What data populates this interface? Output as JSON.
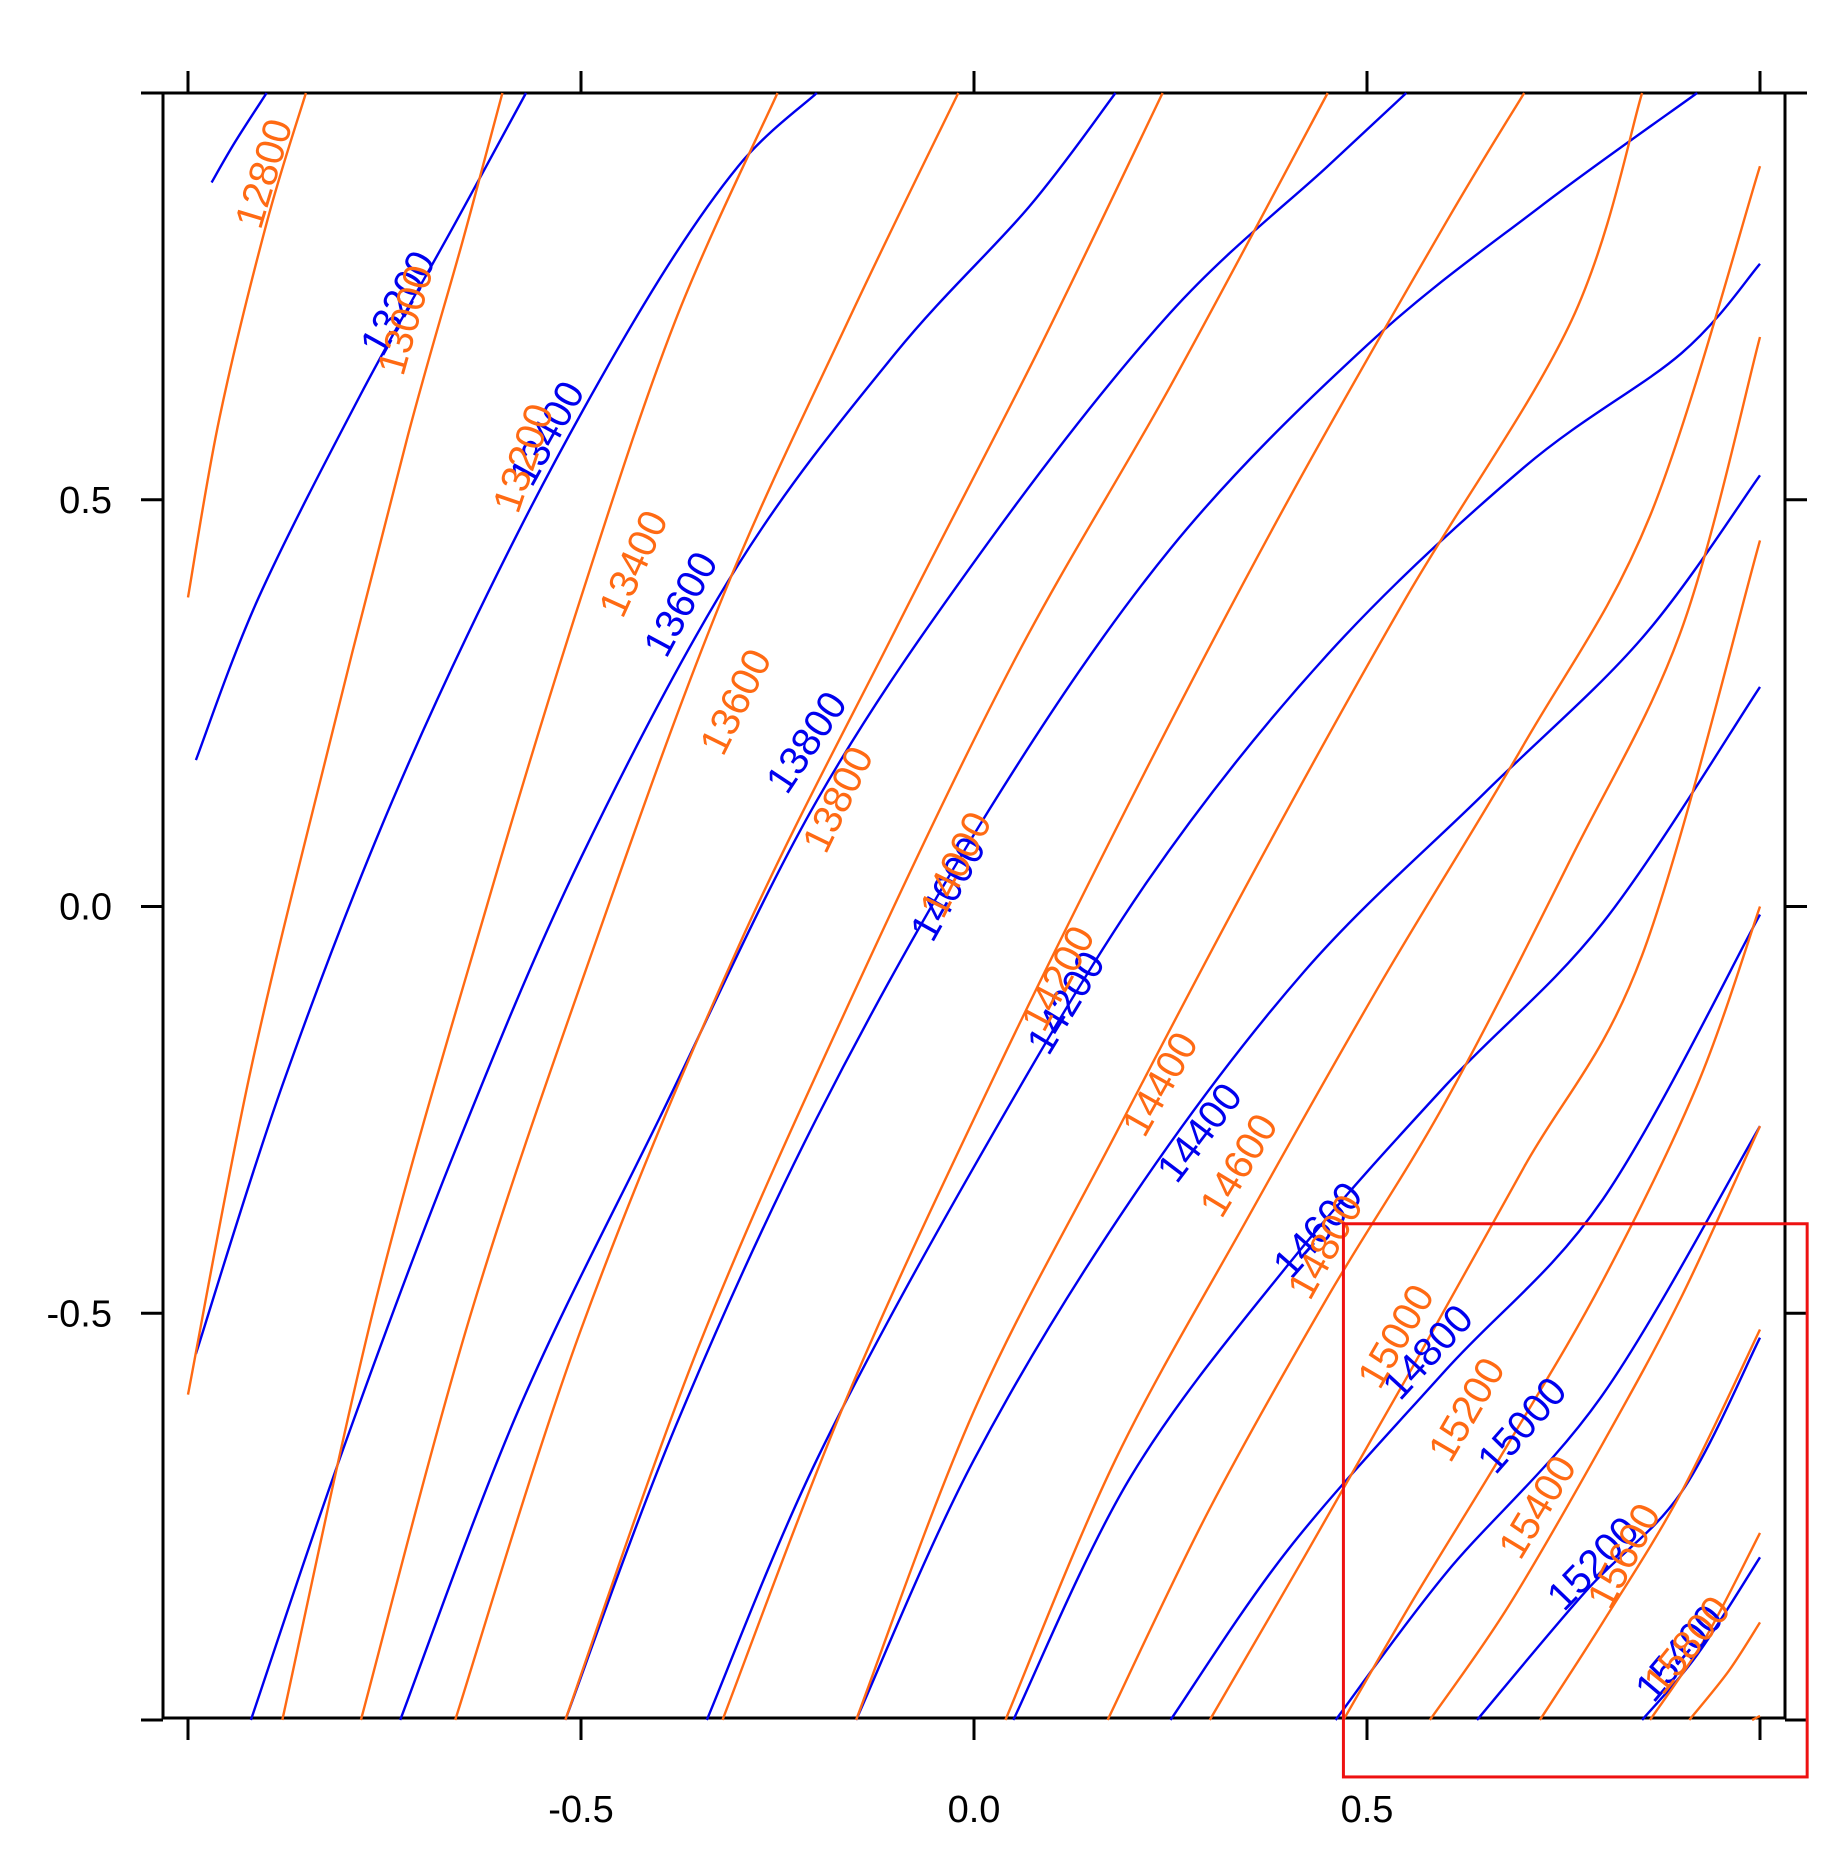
{
  "chart_data": {
    "type": "contour",
    "title": "",
    "xlabel": "",
    "ylabel": "",
    "xlim": [
      -1.0,
      1.0
    ],
    "ylim": [
      -1.0,
      1.0
    ],
    "x_ticks": [
      {
        "value": -0.5,
        "label": "-0.5"
      },
      {
        "value": 0.0,
        "label": "0.0"
      },
      {
        "value": 0.5,
        "label": "0.5"
      }
    ],
    "y_ticks": [
      {
        "value": 0.5,
        "label": "0.5"
      },
      {
        "value": 0.0,
        "label": "0.0"
      },
      {
        "value": -0.5,
        "label": "-0.5"
      }
    ],
    "grid": false,
    "colors": {
      "blue": "#0000ee",
      "orange": "#ff6a13",
      "highlight": "#ee1111"
    },
    "highlight_box": {
      "x": [
        0.47,
        1.06
      ],
      "y": [
        -1.07,
        -0.39
      ]
    },
    "series": [
      {
        "color_key": "blue",
        "contours": [
          {
            "level": "",
            "points": [
              [
                -0.97,
                0.89
              ],
              [
                -0.94,
                0.94
              ],
              [
                -0.9,
                1.0
              ]
            ]
          },
          {
            "level": "13200",
            "label_pos": [
              -0.73,
              0.74
            ],
            "points": [
              [
                -0.99,
                0.18
              ],
              [
                -0.91,
                0.38
              ],
              [
                -0.78,
                0.63
              ],
              [
                -0.66,
                0.84
              ],
              [
                -0.57,
                1.0
              ]
            ]
          },
          {
            "level": "13400",
            "label_pos": [
              -0.54,
              0.58
            ],
            "points": [
              [
                -0.99,
                -0.55
              ],
              [
                -0.88,
                -0.22
              ],
              [
                -0.74,
                0.13
              ],
              [
                -0.58,
                0.46
              ],
              [
                -0.42,
                0.74
              ],
              [
                -0.3,
                0.91
              ],
              [
                -0.2,
                1.0
              ]
            ]
          },
          {
            "level": "13600",
            "label_pos": [
              -0.37,
              0.37
            ],
            "points": [
              [
                -0.92,
                -1.0
              ],
              [
                -0.8,
                -0.66
              ],
              [
                -0.66,
                -0.3
              ],
              [
                -0.5,
                0.06
              ],
              [
                -0.3,
                0.42
              ],
              [
                -0.1,
                0.68
              ],
              [
                0.07,
                0.86
              ],
              [
                0.18,
                1.0
              ]
            ]
          },
          {
            "level": "13800",
            "label_pos": [
              -0.21,
              0.2
            ],
            "points": [
              [
                -0.73,
                -1.0
              ],
              [
                -0.58,
                -0.62
              ],
              [
                -0.4,
                -0.26
              ],
              [
                -0.2,
                0.13
              ],
              [
                0.02,
                0.45
              ],
              [
                0.25,
                0.73
              ],
              [
                0.45,
                0.91
              ],
              [
                0.55,
                1.0
              ]
            ]
          },
          {
            "level": "14000",
            "label_pos": [
              -0.03,
              0.02
            ],
            "points": [
              [
                -0.52,
                -1.0
              ],
              [
                -0.38,
                -0.64
              ],
              [
                -0.2,
                -0.26
              ],
              [
                0.02,
                0.12
              ],
              [
                0.25,
                0.44
              ],
              [
                0.5,
                0.69
              ],
              [
                0.72,
                0.86
              ],
              [
                0.92,
                1.0
              ]
            ]
          },
          {
            "level": "14200",
            "label_pos": [
              0.12,
              -0.12
            ],
            "points": [
              [
                -0.34,
                -1.0
              ],
              [
                -0.2,
                -0.68
              ],
              [
                0.0,
                -0.32
              ],
              [
                0.22,
                0.03
              ],
              [
                0.45,
                0.31
              ],
              [
                0.7,
                0.54
              ],
              [
                0.9,
                0.68
              ],
              [
                1.0,
                0.79
              ]
            ]
          },
          {
            "level": "14400",
            "label_pos": [
              0.29,
              -0.28
            ],
            "points": [
              [
                -0.15,
                -1.0
              ],
              [
                0.0,
                -0.68
              ],
              [
                0.2,
                -0.36
              ],
              [
                0.42,
                -0.08
              ],
              [
                0.65,
                0.14
              ],
              [
                0.85,
                0.33
              ],
              [
                1.0,
                0.53
              ]
            ]
          },
          {
            "level": "14600",
            "label_pos": [
              0.44,
              -0.4
            ],
            "points": [
              [
                0.05,
                -1.0
              ],
              [
                0.2,
                -0.7
              ],
              [
                0.4,
                -0.44
              ],
              [
                0.6,
                -0.22
              ],
              [
                0.8,
                -0.02
              ],
              [
                1.0,
                0.27
              ]
            ]
          },
          {
            "level": "14800",
            "label_pos": [
              0.58,
              -0.55
            ],
            "points": [
              [
                0.25,
                -1.0
              ],
              [
                0.4,
                -0.79
              ],
              [
                0.6,
                -0.57
              ],
              [
                0.8,
                -0.36
              ],
              [
                1.0,
                -0.01
              ]
            ]
          },
          {
            "level": "15000",
            "label_pos": [
              0.7,
              -0.64
            ],
            "points": [
              [
                0.46,
                -1.0
              ],
              [
                0.6,
                -0.82
              ],
              [
                0.8,
                -0.6
              ],
              [
                1.0,
                -0.27
              ]
            ]
          },
          {
            "level": "15200",
            "label_pos": [
              0.79,
              -0.81
            ],
            "points": [
              [
                0.64,
                -1.0
              ],
              [
                0.78,
                -0.84
              ],
              [
                0.9,
                -0.72
              ],
              [
                1.0,
                -0.53
              ]
            ]
          },
          {
            "level": "15400",
            "label_pos": [
              0.9,
              -0.92
            ],
            "points": [
              [
                0.85,
                -1.0
              ],
              [
                0.92,
                -0.92
              ],
              [
                1.0,
                -0.8
              ]
            ]
          }
        ]
      },
      {
        "color_key": "orange",
        "contours": [
          {
            "level": "12800",
            "label_pos": [
              -0.9,
              0.9
            ],
            "points": [
              [
                -1.0,
                0.38
              ],
              [
                -0.96,
                0.6
              ],
              [
                -0.9,
                0.84
              ],
              [
                -0.85,
                1.0
              ]
            ]
          },
          {
            "level": "13000",
            "label_pos": [
              -0.72,
              0.72
            ],
            "points": [
              [
                -1.0,
                -0.6
              ],
              [
                -0.92,
                -0.2
              ],
              [
                -0.82,
                0.2
              ],
              [
                -0.72,
                0.58
              ],
              [
                -0.65,
                0.82
              ],
              [
                -0.6,
                1.0
              ]
            ]
          },
          {
            "level": "13200",
            "label_pos": [
              -0.57,
              0.55
            ],
            "points": [
              [
                -0.88,
                -1.0
              ],
              [
                -0.76,
                -0.48
              ],
              [
                -0.62,
                0.0
              ],
              [
                -0.5,
                0.38
              ],
              [
                -0.38,
                0.72
              ],
              [
                -0.25,
                1.0
              ]
            ]
          },
          {
            "level": "13400",
            "label_pos": [
              -0.43,
              0.42
            ],
            "points": [
              [
                -0.78,
                -1.0
              ],
              [
                -0.64,
                -0.5
              ],
              [
                -0.48,
                -0.04
              ],
              [
                -0.32,
                0.38
              ],
              [
                -0.16,
                0.72
              ],
              [
                -0.02,
                1.0
              ]
            ]
          },
          {
            "level": "13600",
            "label_pos": [
              -0.3,
              0.25
            ],
            "points": [
              [
                -0.66,
                -1.0
              ],
              [
                -0.5,
                -0.52
              ],
              [
                -0.3,
                -0.05
              ],
              [
                -0.1,
                0.34
              ],
              [
                0.08,
                0.68
              ],
              [
                0.24,
                1.0
              ]
            ]
          },
          {
            "level": "13800",
            "label_pos": [
              -0.17,
              0.13
            ],
            "points": [
              [
                -0.52,
                -1.0
              ],
              [
                -0.35,
                -0.54
              ],
              [
                -0.15,
                -0.1
              ],
              [
                0.05,
                0.3
              ],
              [
                0.25,
                0.64
              ],
              [
                0.45,
                1.0
              ]
            ]
          },
          {
            "level": "14000",
            "label_pos": [
              -0.02,
              0.05
            ],
            "points": [
              [
                -0.32,
                -1.0
              ],
              [
                -0.16,
                -0.6
              ],
              [
                0.03,
                -0.2
              ],
              [
                0.22,
                0.17
              ],
              [
                0.4,
                0.5
              ],
              [
                0.6,
                0.84
              ],
              [
                0.7,
                1.0
              ]
            ]
          },
          {
            "level": "14200",
            "label_pos": [
              0.11,
              -0.09
            ],
            "points": [
              [
                -0.15,
                -1.0
              ],
              [
                0.0,
                -0.62
              ],
              [
                0.18,
                -0.28
              ],
              [
                0.36,
                0.05
              ],
              [
                0.55,
                0.38
              ],
              [
                0.76,
                0.72
              ],
              [
                0.85,
                1.0
              ]
            ]
          },
          {
            "level": "14400",
            "label_pos": [
              0.24,
              -0.22
            ],
            "points": [
              [
                0.04,
                -1.0
              ],
              [
                0.18,
                -0.68
              ],
              [
                0.35,
                -0.38
              ],
              [
                0.52,
                -0.09
              ],
              [
                0.7,
                0.2
              ],
              [
                0.86,
                0.48
              ],
              [
                1.0,
                0.91
              ]
            ]
          },
          {
            "level": "14600",
            "label_pos": [
              0.34,
              -0.32
            ],
            "points": [
              [
                0.17,
                -1.0
              ],
              [
                0.3,
                -0.74
              ],
              [
                0.45,
                -0.48
              ],
              [
                0.6,
                -0.24
              ],
              [
                0.76,
                0.06
              ],
              [
                0.9,
                0.34
              ],
              [
                1.0,
                0.7
              ]
            ]
          },
          {
            "level": "14800",
            "label_pos": [
              0.45,
              -0.42
            ],
            "points": [
              [
                0.3,
                -1.0
              ],
              [
                0.42,
                -0.8
              ],
              [
                0.55,
                -0.58
              ],
              [
                0.7,
                -0.32
              ],
              [
                0.85,
                -0.06
              ],
              [
                1.0,
                0.45
              ]
            ]
          },
          {
            "level": "15000",
            "label_pos": [
              0.54,
              -0.53
            ],
            "points": [
              [
                0.47,
                -1.0
              ],
              [
                0.56,
                -0.85
              ],
              [
                0.68,
                -0.66
              ],
              [
                0.8,
                -0.46
              ],
              [
                0.92,
                -0.22
              ],
              [
                1.0,
                0.0
              ]
            ]
          },
          {
            "level": "15200",
            "label_pos": [
              0.63,
              -0.62
            ],
            "points": [
              [
                0.58,
                -1.0
              ],
              [
                0.68,
                -0.86
              ],
              [
                0.8,
                -0.66
              ],
              [
                0.9,
                -0.48
              ],
              [
                1.0,
                -0.27
              ]
            ]
          },
          {
            "level": "15400",
            "label_pos": [
              0.72,
              -0.74
            ],
            "points": [
              [
                0.72,
                -1.0
              ],
              [
                0.8,
                -0.88
              ],
              [
                0.9,
                -0.72
              ],
              [
                1.0,
                -0.52
              ]
            ]
          },
          {
            "level": "15600",
            "label_pos": [
              0.83,
              -0.8
            ],
            "points": [
              [
                0.86,
                -1.0
              ],
              [
                0.93,
                -0.9
              ],
              [
                1.0,
                -0.77
              ]
            ]
          },
          {
            "level": "15800",
            "label_pos": [
              0.91,
              -0.91
            ],
            "points": [
              [
                0.91,
                -1.0
              ],
              [
                0.96,
                -0.94
              ],
              [
                1.0,
                -0.88
              ]
            ]
          },
          {
            "level": "",
            "points": [
              [
                0.99,
                -1.0
              ],
              [
                1.0,
                -0.995
              ]
            ]
          }
        ]
      }
    ]
  }
}
